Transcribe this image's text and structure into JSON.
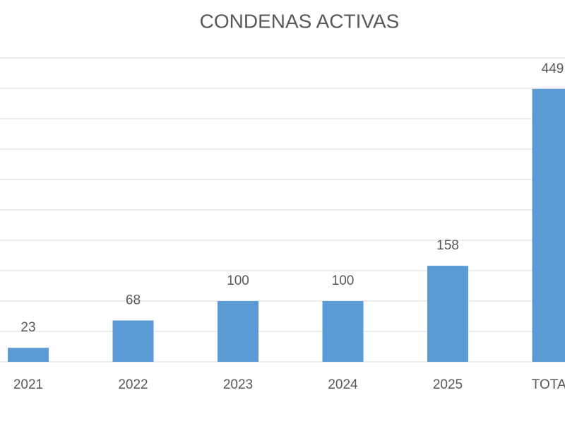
{
  "chart_data": {
    "type": "bar",
    "title": "CONDENAS ACTIVAS",
    "categories": [
      "2021",
      "2022",
      "2023",
      "2024",
      "2025",
      "TOTAL"
    ],
    "values": [
      23,
      68,
      100,
      100,
      158,
      449
    ],
    "color": "#5b9bd5",
    "ylim": [
      0,
      500
    ],
    "yticks": [
      0,
      50,
      100,
      150,
      200,
      250,
      300,
      350,
      400,
      450,
      500
    ],
    "grid": true
  }
}
